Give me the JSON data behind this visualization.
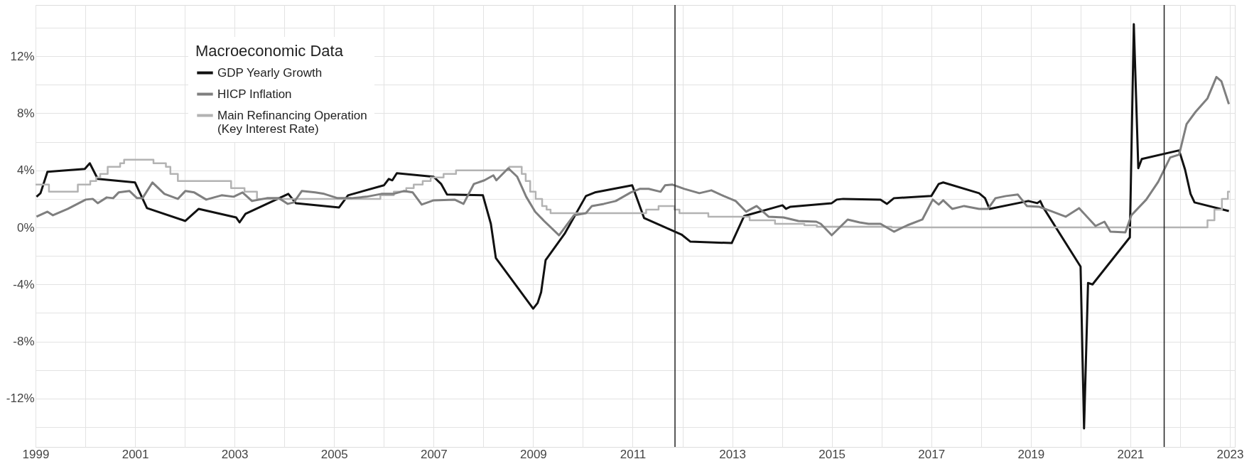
{
  "chart_data": {
    "type": "line",
    "legend_title": "Macroeconomic Data",
    "series": [
      {
        "name": "GDP Yearly Growth",
        "color": "#111111",
        "x": [
          1999.02,
          1999.1,
          1999.24,
          1999.99,
          2000.09,
          2000.25,
          2001.0,
          2001.24,
          2002.01,
          2002.28,
          2003.03,
          2003.1,
          2003.22,
          2004.08,
          2004.23,
          2005.1,
          2005.28,
          2006.0,
          2006.1,
          2006.17,
          2006.26,
          2007.0,
          2007.15,
          2007.27,
          2007.99,
          2008.15,
          2008.25,
          2009.0,
          2009.09,
          2009.16,
          2009.25,
          2009.64,
          2010.06,
          2010.24,
          2010.99,
          2011.23,
          2011.98,
          2012.16,
          2012.99,
          2013.24,
          2014.01,
          2014.08,
          2014.17,
          2015.0,
          2015.1,
          2015.23,
          2015.98,
          2016.11,
          2016.25,
          2017.0,
          2017.15,
          2017.24,
          2017.96,
          2018.08,
          2018.17,
          2018.95,
          2019.13,
          2019.19,
          2019.25,
          2020.0,
          2020.07,
          2020.15,
          2020.24,
          2020.99,
          2021.07,
          2021.16,
          2021.23,
          2021.98,
          2022.1,
          2022.21,
          2022.29,
          2022.98
        ],
        "values": [
          2.15,
          2.4,
          3.9,
          4.1,
          4.5,
          3.4,
          3.15,
          1.35,
          0.45,
          1.3,
          0.7,
          0.35,
          0.95,
          2.35,
          1.7,
          1.4,
          2.25,
          2.95,
          3.4,
          3.3,
          3.8,
          3.55,
          3.05,
          2.3,
          2.25,
          0.25,
          -2.15,
          -5.7,
          -5.3,
          -4.55,
          -2.3,
          -0.4,
          2.2,
          2.45,
          2.95,
          0.65,
          -0.5,
          -1.0,
          -1.1,
          0.8,
          1.55,
          1.3,
          1.45,
          1.7,
          1.95,
          2.0,
          1.95,
          1.65,
          2.05,
          2.2,
          3.05,
          3.15,
          2.4,
          2.05,
          1.3,
          1.85,
          1.7,
          1.85,
          1.4,
          -2.75,
          -14.1,
          -3.9,
          -4.0,
          -0.7,
          14.25,
          4.15,
          4.8,
          5.4,
          4.05,
          2.35,
          1.75,
          1.15
        ]
      },
      {
        "name": "HICP Inflation",
        "color": "#7f7f7f",
        "x": [
          1999.02,
          1999.24,
          1999.35,
          1999.65,
          2000.01,
          2000.15,
          2000.25,
          2000.43,
          2000.56,
          2000.67,
          2000.89,
          2001.04,
          2001.15,
          2001.35,
          2001.59,
          2001.86,
          2002.01,
          2002.19,
          2002.43,
          2002.74,
          2002.98,
          2003.16,
          2003.35,
          2003.65,
          2003.89,
          2004.07,
          2004.19,
          2004.35,
          2004.62,
          2004.8,
          2005.07,
          2005.35,
          2005.65,
          2005.95,
          2006.19,
          2006.4,
          2006.58,
          2006.76,
          2007.0,
          2007.42,
          2007.6,
          2007.81,
          2008.02,
          2008.2,
          2008.26,
          2008.5,
          2008.68,
          2008.86,
          2009.04,
          2009.22,
          2009.52,
          2009.82,
          2010.06,
          2010.18,
          2010.42,
          2010.66,
          2010.96,
          2011.14,
          2011.32,
          2011.56,
          2011.65,
          2011.8,
          2012.04,
          2012.34,
          2012.58,
          2012.83,
          2013.07,
          2013.28,
          2013.49,
          2013.73,
          2014.03,
          2014.33,
          2014.69,
          2014.78,
          2015.0,
          2015.32,
          2015.56,
          2015.74,
          2015.98,
          2016.25,
          2016.52,
          2016.82,
          2017.03,
          2017.15,
          2017.24,
          2017.42,
          2017.66,
          2017.96,
          2018.14,
          2018.29,
          2018.5,
          2018.74,
          2018.92,
          2019.16,
          2019.4,
          2019.7,
          2019.97,
          2020.3,
          2020.48,
          2020.6,
          2020.9,
          2021.02,
          2021.32,
          2021.56,
          2021.8,
          2021.98,
          2022.13,
          2022.31,
          2022.55,
          2022.73,
          2022.83,
          2022.98
        ],
        "values": [
          0.75,
          1.1,
          0.85,
          1.3,
          1.95,
          2.0,
          1.7,
          2.1,
          2.05,
          2.45,
          2.55,
          2.05,
          2.05,
          3.15,
          2.35,
          2.0,
          2.55,
          2.45,
          1.95,
          2.25,
          2.15,
          2.45,
          1.85,
          2.05,
          2.05,
          1.65,
          1.75,
          2.55,
          2.45,
          2.35,
          2.05,
          2.05,
          2.15,
          2.35,
          2.35,
          2.55,
          2.45,
          1.6,
          1.9,
          1.95,
          1.65,
          3.05,
          3.3,
          3.65,
          3.3,
          4.15,
          3.55,
          2.15,
          1.1,
          0.45,
          -0.55,
          0.85,
          1.0,
          1.5,
          1.65,
          1.85,
          2.45,
          2.7,
          2.7,
          2.5,
          2.95,
          3.0,
          2.7,
          2.4,
          2.6,
          2.2,
          1.85,
          1.1,
          1.5,
          0.75,
          0.7,
          0.45,
          0.4,
          0.25,
          -0.55,
          0.55,
          0.35,
          0.25,
          0.25,
          -0.3,
          0.15,
          0.55,
          1.95,
          1.6,
          1.9,
          1.3,
          1.5,
          1.3,
          1.3,
          2.05,
          2.2,
          2.3,
          1.5,
          1.45,
          1.15,
          0.75,
          1.35,
          0.1,
          0.4,
          -0.3,
          -0.35,
          0.85,
          1.95,
          3.2,
          4.9,
          5.1,
          7.25,
          8.1,
          9.05,
          10.55,
          10.25,
          8.65
        ]
      },
      {
        "name": "Main Refinancing Operation\n(Key Interest Rate)",
        "color": "#b3b3b3",
        "type": "step",
        "x": [
          1999.0,
          1999.27,
          1999.85,
          2000.1,
          2000.22,
          2000.3,
          2000.45,
          2000.7,
          2000.78,
          2001.37,
          2001.62,
          2001.71,
          2001.86,
          2002.93,
          2003.2,
          2003.45,
          2005.93,
          2006.2,
          2006.45,
          2006.6,
          2006.78,
          2006.94,
          2007.2,
          2007.45,
          2008.52,
          2008.77,
          2008.85,
          2008.94,
          2009.05,
          2009.18,
          2009.27,
          2009.35,
          2011.27,
          2011.52,
          2011.84,
          2011.94,
          2012.52,
          2013.35,
          2013.86,
          2014.45,
          2014.7,
          2016.2,
          2022.55,
          2022.69,
          2022.84,
          2022.96,
          2023.0
        ],
        "values": [
          3.0,
          2.5,
          3.0,
          3.25,
          3.5,
          3.75,
          4.25,
          4.5,
          4.75,
          4.5,
          4.25,
          3.75,
          3.25,
          2.75,
          2.5,
          2.0,
          2.25,
          2.5,
          2.75,
          3.0,
          3.25,
          3.5,
          3.75,
          4.0,
          4.25,
          3.75,
          3.25,
          2.5,
          2.0,
          1.5,
          1.25,
          1.0,
          1.25,
          1.5,
          1.25,
          1.0,
          0.75,
          0.5,
          0.25,
          0.15,
          0.05,
          0.0,
          0.5,
          1.25,
          2.0,
          2.5,
          2.5
        ]
      }
    ],
    "xlim": [
      1999,
      2023.1
    ],
    "xticks": [
      1999,
      {
        "value": 2000,
        "label": null
      },
      2001,
      {
        "value": 2002,
        "label": null
      },
      2003,
      {
        "value": 2004,
        "label": null
      },
      2005,
      {
        "value": 2006,
        "label": null
      },
      2007,
      {
        "value": 2008,
        "label": null
      },
      2009,
      {
        "value": 2010,
        "label": null
      },
      2011,
      {
        "value": 2012,
        "label": null
      },
      2013,
      {
        "value": 2014,
        "label": null
      },
      2015,
      {
        "value": 2016,
        "label": null
      },
      2017,
      {
        "value": 2018,
        "label": null
      },
      2019,
      {
        "value": 2020,
        "label": null
      },
      2021,
      {
        "value": 2022,
        "label": null
      },
      2023
    ],
    "ylim": [
      -15.4,
      15.6
    ],
    "yticks": [
      {
        "value": -14,
        "label": null
      },
      {
        "value": -12,
        "label": "-12%"
      },
      {
        "value": -10,
        "label": null
      },
      {
        "value": -8,
        "label": "-8%"
      },
      {
        "value": -6,
        "label": null
      },
      {
        "value": -4,
        "label": "-4%"
      },
      {
        "value": -2,
        "label": null
      },
      {
        "value": 0,
        "label": "0%"
      },
      {
        "value": 2,
        "label": null
      },
      {
        "value": 4,
        "label": "4%"
      },
      {
        "value": 6,
        "label": null
      },
      {
        "value": 8,
        "label": "8%"
      },
      {
        "value": 10,
        "label": null
      },
      {
        "value": 12,
        "label": "12%"
      },
      {
        "value": 14,
        "label": null
      }
    ],
    "ref_lines": [
      {
        "axis": "x",
        "value": 2011.85,
        "color": "#222222"
      },
      {
        "axis": "x",
        "value": 2021.68,
        "color": "#222222"
      }
    ],
    "grid": true,
    "legend": "top left"
  }
}
